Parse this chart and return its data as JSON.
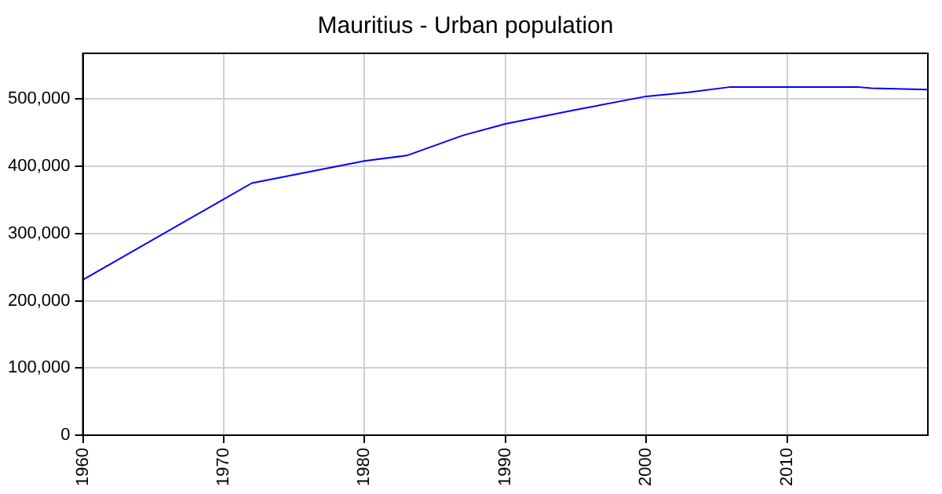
{
  "chart_data": {
    "type": "line",
    "title": "Mauritius - Urban population",
    "x": [
      1960,
      1972,
      1980,
      1983,
      1987,
      1990,
      1995,
      2000,
      2003,
      2006,
      2010,
      2015,
      2016,
      2020
    ],
    "series": [
      {
        "color": "#0000ff",
        "values": [
          231000,
          375000,
          408000,
          416000,
          446000,
          463000,
          484000,
          504000,
          510000,
          518000,
          518000,
          518000,
          516000,
          514000
        ]
      }
    ],
    "xlim": [
      1960,
      2020
    ],
    "xticks": [
      1960,
      1970,
      1980,
      1990,
      2000,
      2010
    ],
    "ylim": [
      0,
      568000
    ],
    "yticks": [
      {
        "value": 0,
        "label": "0"
      },
      {
        "value": 100000,
        "label": "100,000"
      },
      {
        "value": 200000,
        "label": "200,000"
      },
      {
        "value": 300000,
        "label": "300,000"
      },
      {
        "value": 400000,
        "label": "400,000"
      },
      {
        "value": 500000,
        "label": "500,000"
      }
    ],
    "grid": true,
    "legend": false,
    "marker": "none",
    "line_style": "solid"
  }
}
